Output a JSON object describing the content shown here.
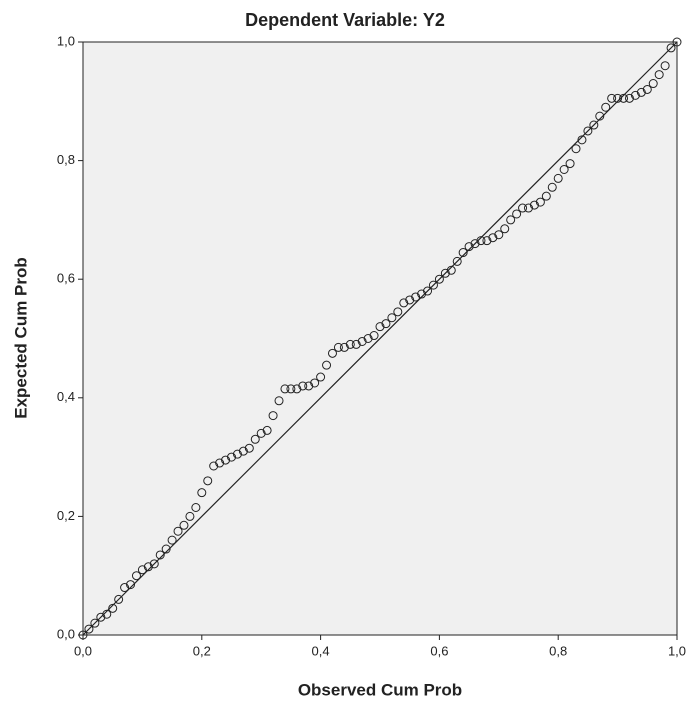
{
  "chart_data": {
    "type": "scatter",
    "title": "Dependent Variable: Y2",
    "x_label": "Observed Cum Prob",
    "y_label": "Expected Cum Prob",
    "xlim": [
      0,
      1
    ],
    "ylim": [
      0,
      1
    ],
    "xticks": [
      {
        "value": 0,
        "label": "0,0"
      },
      {
        "value": 0.2,
        "label": "0,2"
      },
      {
        "value": 0.4,
        "label": "0,4"
      },
      {
        "value": 0.6,
        "label": "0,6"
      },
      {
        "value": 0.8,
        "label": "0,8"
      },
      {
        "value": 1,
        "label": "1,0"
      }
    ],
    "yticks": [
      {
        "value": 0,
        "label": "0,0"
      },
      {
        "value": 0.2,
        "label": "0,2"
      },
      {
        "value": 0.4,
        "label": "0,4"
      },
      {
        "value": 0.6,
        "label": "0,6"
      },
      {
        "value": 0.8,
        "label": "0,8"
      },
      {
        "value": 1,
        "label": "1,0"
      }
    ],
    "color": "#222222",
    "x": [
      0.0,
      0.01,
      0.02,
      0.03,
      0.04,
      0.05,
      0.06,
      0.07,
      0.08,
      0.09,
      0.1,
      0.11,
      0.12,
      0.13,
      0.14,
      0.15,
      0.16,
      0.17,
      0.18,
      0.19,
      0.2,
      0.21,
      0.22,
      0.23,
      0.24,
      0.25,
      0.26,
      0.27,
      0.28,
      0.29,
      0.3,
      0.31,
      0.32,
      0.33,
      0.34,
      0.35,
      0.36,
      0.37,
      0.38,
      0.39,
      0.4,
      0.41,
      0.42,
      0.43,
      0.44,
      0.45,
      0.46,
      0.47,
      0.48,
      0.49,
      0.5,
      0.51,
      0.52,
      0.53,
      0.54,
      0.55,
      0.56,
      0.57,
      0.58,
      0.59,
      0.6,
      0.61,
      0.62,
      0.63,
      0.64,
      0.65,
      0.66,
      0.67,
      0.68,
      0.69,
      0.7,
      0.71,
      0.72,
      0.73,
      0.74,
      0.75,
      0.76,
      0.77,
      0.78,
      0.79,
      0.8,
      0.81,
      0.82,
      0.83,
      0.84,
      0.85,
      0.86,
      0.87,
      0.88,
      0.89,
      0.9,
      0.91,
      0.92,
      0.93,
      0.94,
      0.95,
      0.96,
      0.97,
      0.98,
      0.99,
      1.0
    ],
    "values": [
      0.0,
      0.01,
      0.02,
      0.03,
      0.035,
      0.045,
      0.06,
      0.08,
      0.085,
      0.1,
      0.11,
      0.115,
      0.12,
      0.135,
      0.145,
      0.16,
      0.175,
      0.185,
      0.2,
      0.215,
      0.24,
      0.26,
      0.285,
      0.29,
      0.295,
      0.3,
      0.305,
      0.31,
      0.315,
      0.33,
      0.34,
      0.345,
      0.37,
      0.395,
      0.415,
      0.415,
      0.415,
      0.42,
      0.42,
      0.425,
      0.435,
      0.455,
      0.475,
      0.485,
      0.485,
      0.49,
      0.49,
      0.495,
      0.5,
      0.505,
      0.52,
      0.525,
      0.535,
      0.545,
      0.56,
      0.565,
      0.57,
      0.575,
      0.58,
      0.59,
      0.6,
      0.61,
      0.615,
      0.63,
      0.645,
      0.655,
      0.66,
      0.665,
      0.665,
      0.67,
      0.675,
      0.685,
      0.7,
      0.71,
      0.72,
      0.72,
      0.725,
      0.73,
      0.74,
      0.755,
      0.77,
      0.785,
      0.795,
      0.82,
      0.835,
      0.85,
      0.86,
      0.875,
      0.89,
      0.905,
      0.905,
      0.905,
      0.905,
      0.91,
      0.915,
      0.92,
      0.93,
      0.945,
      0.96,
      0.99,
      1.0
    ]
  }
}
